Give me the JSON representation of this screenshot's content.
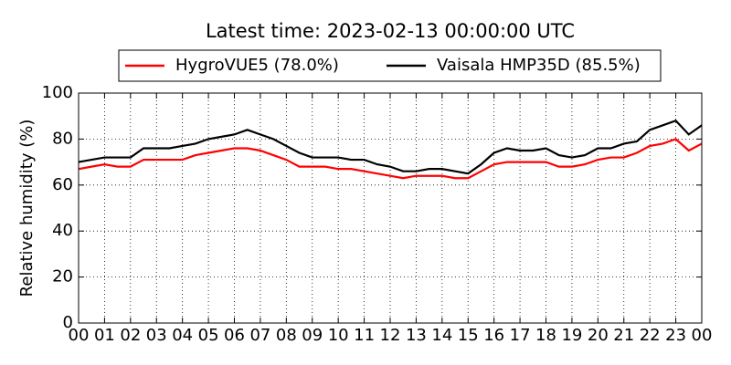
{
  "chart_data": {
    "type": "line",
    "title": "Latest time: 2023-02-13 00:00:00 UTC",
    "ylabel": "Relative humidity (%)",
    "x": [
      0,
      0.5,
      1,
      1.5,
      2,
      2.5,
      3,
      3.5,
      4,
      4.5,
      5,
      5.5,
      6,
      6.5,
      7,
      7.5,
      8,
      8.5,
      9,
      9.5,
      10,
      10.5,
      11,
      11.5,
      12,
      12.5,
      13,
      13.5,
      14,
      14.5,
      15,
      15.5,
      16,
      16.5,
      17,
      17.5,
      18,
      18.5,
      19,
      19.5,
      20,
      20.5,
      21,
      21.5,
      22,
      22.5,
      23,
      23.5,
      24
    ],
    "series": [
      {
        "name": "HygroVUE5 (78.0%)",
        "color": "#ff0000",
        "values": [
          67,
          68,
          69,
          68,
          68,
          71,
          71,
          71,
          71,
          73,
          74,
          75,
          76,
          76,
          75,
          73,
          71,
          68,
          68,
          68,
          67,
          67,
          66,
          65,
          64,
          63,
          64,
          64,
          64,
          63,
          63,
          66,
          69,
          70,
          70,
          70,
          70,
          68,
          68,
          69,
          71,
          72,
          72,
          74,
          77,
          78,
          80,
          75,
          78
        ]
      },
      {
        "name": "Vaisala HMP35D (85.5%)",
        "color": "#000000",
        "values": [
          70,
          71,
          72,
          72,
          72,
          76,
          76,
          76,
          77,
          78,
          80,
          81,
          82,
          84,
          82,
          80,
          77,
          74,
          72,
          72,
          72,
          71,
          71,
          69,
          68,
          66,
          66,
          67,
          67,
          66,
          65,
          69,
          74,
          76,
          75,
          75,
          76,
          73,
          72,
          73,
          76,
          76,
          78,
          79,
          84,
          86,
          88,
          82,
          86
        ]
      }
    ],
    "xlim": [
      0,
      24
    ],
    "xticks": [
      {
        "value": 0,
        "label": "00"
      },
      {
        "value": 1,
        "label": "01"
      },
      {
        "value": 2,
        "label": "02"
      },
      {
        "value": 3,
        "label": "03"
      },
      {
        "value": 4,
        "label": "04"
      },
      {
        "value": 5,
        "label": "05"
      },
      {
        "value": 6,
        "label": "06"
      },
      {
        "value": 7,
        "label": "07"
      },
      {
        "value": 8,
        "label": "08"
      },
      {
        "value": 9,
        "label": "09"
      },
      {
        "value": 10,
        "label": "10"
      },
      {
        "value": 11,
        "label": "11"
      },
      {
        "value": 12,
        "label": "12"
      },
      {
        "value": 13,
        "label": "13"
      },
      {
        "value": 14,
        "label": "14"
      },
      {
        "value": 15,
        "label": "15"
      },
      {
        "value": 16,
        "label": "16"
      },
      {
        "value": 17,
        "label": "17"
      },
      {
        "value": 18,
        "label": "18"
      },
      {
        "value": 19,
        "label": "19"
      },
      {
        "value": 20,
        "label": "20"
      },
      {
        "value": 21,
        "label": "21"
      },
      {
        "value": 22,
        "label": "22"
      },
      {
        "value": 23,
        "label": "23"
      },
      {
        "value": 24,
        "label": "00"
      }
    ],
    "ylim": [
      0,
      100
    ],
    "yticks": [
      0,
      20,
      40,
      60,
      80,
      100
    ],
    "grid": true
  }
}
